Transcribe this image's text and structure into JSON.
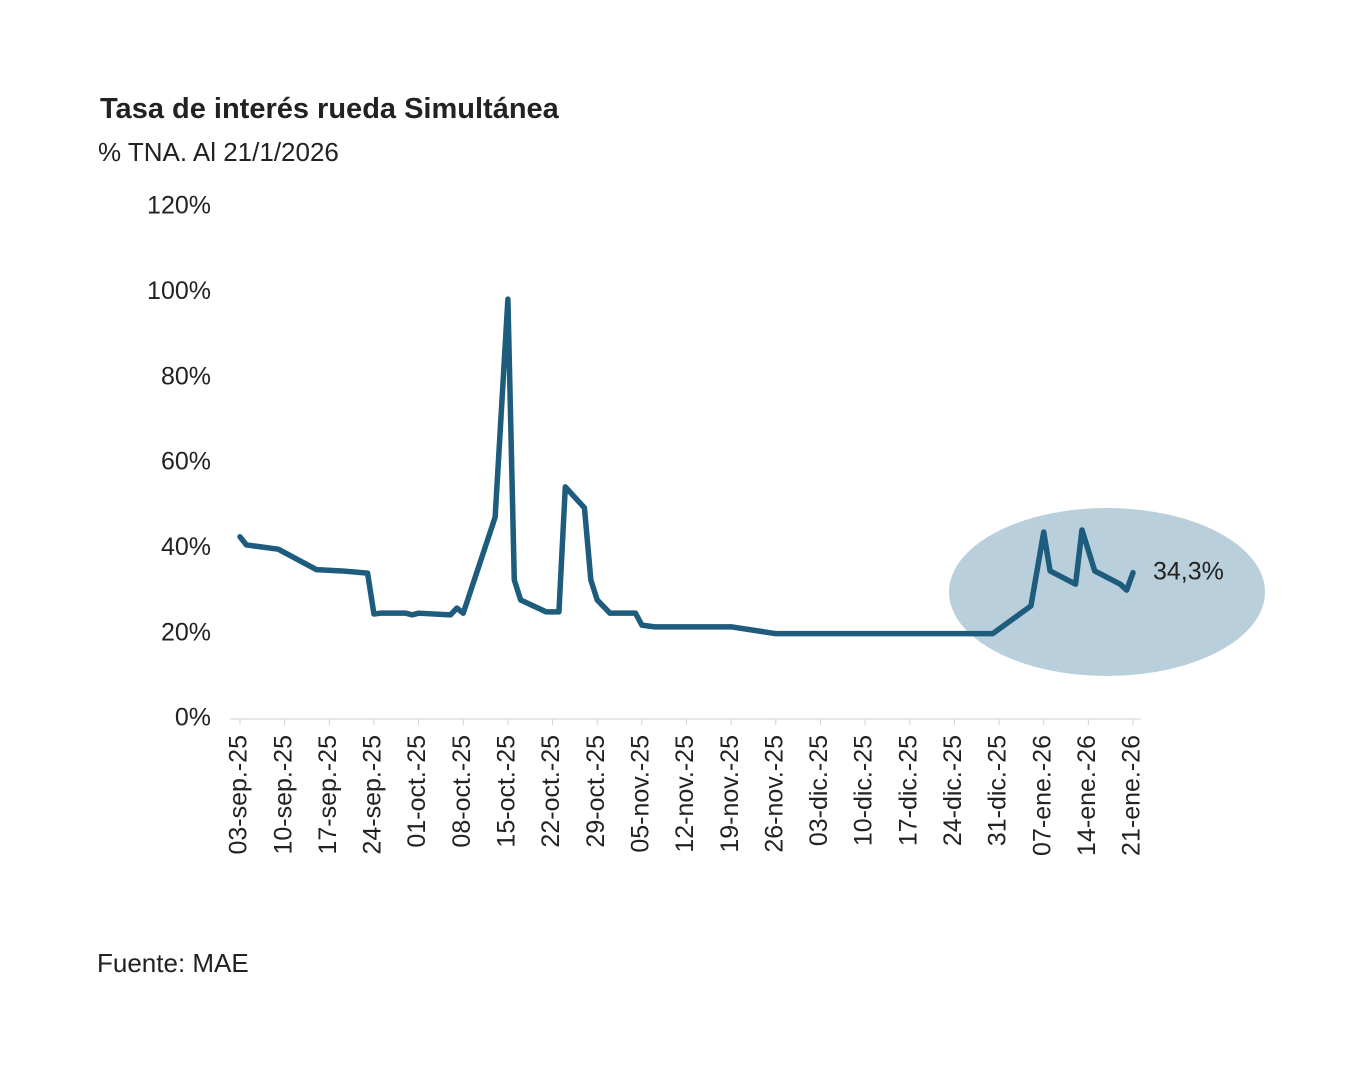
{
  "chart_data": {
    "type": "line",
    "title": "Tasa de interés rueda Simultánea",
    "subtitle": "% TNA. Al 21/1/2026",
    "source": "Fuente: MAE",
    "x": [
      "2025-09-03",
      "2025-09-04",
      "2025-09-09",
      "2025-09-15",
      "2025-09-19",
      "2025-09-23",
      "2025-09-24",
      "2025-09-25",
      "2025-09-29",
      "2025-09-30",
      "2025-10-01",
      "2025-10-06",
      "2025-10-07",
      "2025-10-08",
      "2025-10-13",
      "2025-10-15",
      "2025-10-16",
      "2025-10-17",
      "2025-10-21",
      "2025-10-23",
      "2025-10-24",
      "2025-10-27",
      "2025-10-28",
      "2025-10-29",
      "2025-10-31",
      "2025-11-04",
      "2025-11-05",
      "2025-11-07",
      "2025-11-19",
      "2025-11-26",
      "2025-12-30",
      "2026-01-05",
      "2026-01-07",
      "2026-01-08",
      "2026-01-12",
      "2026-01-13",
      "2026-01-15",
      "2026-01-19",
      "2026-01-20",
      "2026-01-21"
    ],
    "series": [
      {
        "name": "Tasa",
        "color": "#1d5c7c",
        "values": [
          42.7,
          40.8,
          39.8,
          35,
          34.7,
          34.2,
          24.6,
          24.8,
          24.8,
          24.4,
          24.8,
          24.4,
          26,
          24.8,
          47.3,
          98.4,
          32.6,
          27.9,
          25.1,
          25.1,
          54.4,
          49.5,
          32.6,
          27.9,
          24.8,
          24.8,
          22,
          21.6,
          21.6,
          20,
          20,
          26.5,
          43.8,
          34.7,
          31.6,
          44.3,
          34.7,
          31.6,
          30.2,
          34.3
        ]
      }
    ],
    "annotation": {
      "label": "34,3%",
      "value": 34.3
    },
    "xlim": [
      "2025-09-03",
      "2026-01-21"
    ],
    "xticks": [
      {
        "value": "2025-09-03",
        "label": "03-sep.-25"
      },
      {
        "value": "2025-09-10",
        "label": "10-sep.-25"
      },
      {
        "value": "2025-09-17",
        "label": "17-sep.-25"
      },
      {
        "value": "2025-09-24",
        "label": "24-sep.-25"
      },
      {
        "value": "2025-10-01",
        "label": "01-oct.-25"
      },
      {
        "value": "2025-10-08",
        "label": "08-oct.-25"
      },
      {
        "value": "2025-10-15",
        "label": "15-oct.-25"
      },
      {
        "value": "2025-10-22",
        "label": "22-oct.-25"
      },
      {
        "value": "2025-10-29",
        "label": "29-oct.-25"
      },
      {
        "value": "2025-11-05",
        "label": "05-nov.-25"
      },
      {
        "value": "2025-11-12",
        "label": "12-nov.-25"
      },
      {
        "value": "2025-11-19",
        "label": "19-nov.-25"
      },
      {
        "value": "2025-11-26",
        "label": "26-nov.-25"
      },
      {
        "value": "2025-12-03",
        "label": "03-dic.-25"
      },
      {
        "value": "2025-12-10",
        "label": "10-dic.-25"
      },
      {
        "value": "2025-12-17",
        "label": "17-dic.-25"
      },
      {
        "value": "2025-12-24",
        "label": "24-dic.-25"
      },
      {
        "value": "2025-12-31",
        "label": "31-dic.-25"
      },
      {
        "value": "2026-01-07",
        "label": "07-ene.-26"
      },
      {
        "value": "2026-01-14",
        "label": "14-ene.-26"
      },
      {
        "value": "2026-01-21",
        "label": "21-ene.-26"
      }
    ],
    "ylim": [
      0,
      120
    ],
    "yticks": [
      {
        "value": 0,
        "label": "0%"
      },
      {
        "value": 20,
        "label": "20%"
      },
      {
        "value": 40,
        "label": "40%"
      },
      {
        "value": 60,
        "label": "60%"
      },
      {
        "value": 80,
        "label": "80%"
      },
      {
        "value": 100,
        "label": "100%"
      },
      {
        "value": 120,
        "label": "120%"
      }
    ],
    "grid": false
  }
}
